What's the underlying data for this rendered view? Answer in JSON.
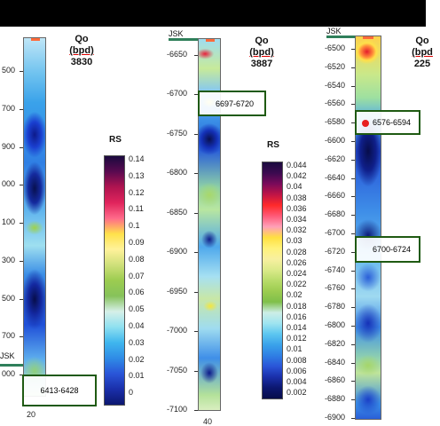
{
  "panels": [
    {
      "qo_label": "Qo",
      "qo_unit": "(bpd)",
      "qo_value": "3830",
      "depth_ticks": [
        "500",
        "700",
        "900",
        "000",
        "100",
        "300",
        "500",
        "700",
        "000"
      ],
      "jsk_label": "JSK",
      "box_label": "6413-6428",
      "bottom_tick": "20",
      "legend_title": "RS",
      "legend_labels": [
        "0.14",
        "0.13",
        "0.12",
        "0.11",
        "0.1",
        "0.09",
        "0.08",
        "0.07",
        "0.06",
        "0.05",
        "0.04",
        "0.03",
        "0.02",
        "0.01",
        "0"
      ]
    },
    {
      "jsk_label": "JSK",
      "qo_label": "Qo",
      "qo_unit": "(bpd)",
      "qo_value": "3887",
      "depth_ticks": [
        "-6650",
        "-6700",
        "-6750",
        "-6800",
        "-6850",
        "-6900",
        "-6950",
        "-7000",
        "-7050",
        "-7100"
      ],
      "box_label": "6697-6720",
      "bottom_tick": "40",
      "legend_title": "RS",
      "legend_labels": [
        "0.044",
        "0.042",
        "0.04",
        "0.038",
        "0.036",
        "0.034",
        "0.032",
        "0.03",
        "0.028",
        "0.026",
        "0.024",
        "0.022",
        "0.02",
        "0.018",
        "0.016",
        "0.014",
        "0.012",
        "0.01",
        "0.008",
        "0.006",
        "0.004",
        "0.002"
      ]
    },
    {
      "jsk_label": "JSK",
      "qo_label": "Qo",
      "qo_unit": "(bpd",
      "qo_value": "225",
      "depth_ticks": [
        "-6500",
        "-6520",
        "-6540",
        "-6560",
        "-6580",
        "-6600",
        "-6620",
        "-6640",
        "-6660",
        "-6680",
        "-6700",
        "-6720",
        "-6740",
        "-6760",
        "-6780",
        "-6800",
        "-6820",
        "-6840",
        "-6860",
        "-6880",
        "-6900"
      ],
      "box_label_1": "6576-6594",
      "box_label_2": "6700-6724"
    }
  ],
  "colors": {
    "jsk_line": "#2f7f5a",
    "box_border": "#1f5a12",
    "perforation_dot": "#e82020"
  }
}
